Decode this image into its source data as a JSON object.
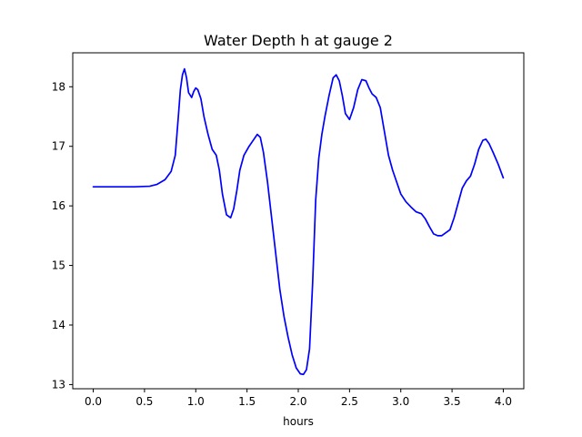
{
  "chart_data": {
    "type": "line",
    "title": "Water Depth h at gauge 2",
    "xlabel": "hours",
    "ylabel": "",
    "xlim": [
      -0.2,
      4.2
    ],
    "ylim": [
      12.93,
      18.57
    ],
    "xticks": [
      0.0,
      0.5,
      1.0,
      1.5,
      2.0,
      2.5,
      3.0,
      3.5,
      4.0
    ],
    "xtick_labels": [
      "0.0",
      "0.5",
      "1.0",
      "1.5",
      "2.0",
      "2.5",
      "3.0",
      "3.5",
      "4.0"
    ],
    "yticks": [
      13,
      14,
      15,
      16,
      17,
      18
    ],
    "ytick_labels": [
      "13",
      "14",
      "15",
      "16",
      "17",
      "18"
    ],
    "grid": false,
    "series": [
      {
        "color": "#0000ff",
        "x": [
          0.0,
          0.2,
          0.4,
          0.55,
          0.62,
          0.7,
          0.76,
          0.8,
          0.83,
          0.85,
          0.87,
          0.89,
          0.91,
          0.93,
          0.96,
          0.98,
          1.0,
          1.02,
          1.05,
          1.08,
          1.12,
          1.16,
          1.2,
          1.23,
          1.26,
          1.3,
          1.34,
          1.37,
          1.4,
          1.43,
          1.47,
          1.52,
          1.56,
          1.6,
          1.63,
          1.66,
          1.7,
          1.74,
          1.78,
          1.82,
          1.86,
          1.9,
          1.94,
          1.98,
          2.02,
          2.05,
          2.08,
          2.11,
          2.14,
          2.17,
          2.2,
          2.23,
          2.26,
          2.3,
          2.34,
          2.37,
          2.4,
          2.43,
          2.46,
          2.5,
          2.54,
          2.58,
          2.62,
          2.66,
          2.69,
          2.72,
          2.76,
          2.8,
          2.84,
          2.88,
          2.92,
          2.96,
          3.0,
          3.05,
          3.1,
          3.15,
          3.2,
          3.24,
          3.28,
          3.32,
          3.36,
          3.4,
          3.44,
          3.48,
          3.52,
          3.56,
          3.6,
          3.64,
          3.68,
          3.72,
          3.76,
          3.8,
          3.83,
          3.86,
          3.9,
          3.95,
          4.0
        ],
        "y": [
          16.32,
          16.32,
          16.32,
          16.33,
          16.36,
          16.44,
          16.58,
          16.85,
          17.5,
          17.95,
          18.2,
          18.3,
          18.15,
          17.9,
          17.82,
          17.92,
          17.98,
          17.95,
          17.8,
          17.5,
          17.2,
          16.95,
          16.85,
          16.6,
          16.2,
          15.85,
          15.8,
          15.95,
          16.25,
          16.6,
          16.85,
          17.0,
          17.1,
          17.2,
          17.15,
          16.9,
          16.4,
          15.8,
          15.2,
          14.6,
          14.15,
          13.8,
          13.5,
          13.28,
          13.18,
          13.17,
          13.25,
          13.6,
          14.7,
          16.1,
          16.8,
          17.2,
          17.5,
          17.85,
          18.15,
          18.2,
          18.1,
          17.85,
          17.55,
          17.45,
          17.65,
          17.95,
          18.12,
          18.1,
          17.98,
          17.88,
          17.82,
          17.65,
          17.25,
          16.85,
          16.6,
          16.4,
          16.2,
          16.07,
          15.98,
          15.9,
          15.87,
          15.78,
          15.65,
          15.53,
          15.5,
          15.5,
          15.55,
          15.6,
          15.8,
          16.05,
          16.3,
          16.42,
          16.5,
          16.7,
          16.95,
          17.1,
          17.12,
          17.05,
          16.9,
          16.7,
          16.47
        ]
      }
    ]
  }
}
